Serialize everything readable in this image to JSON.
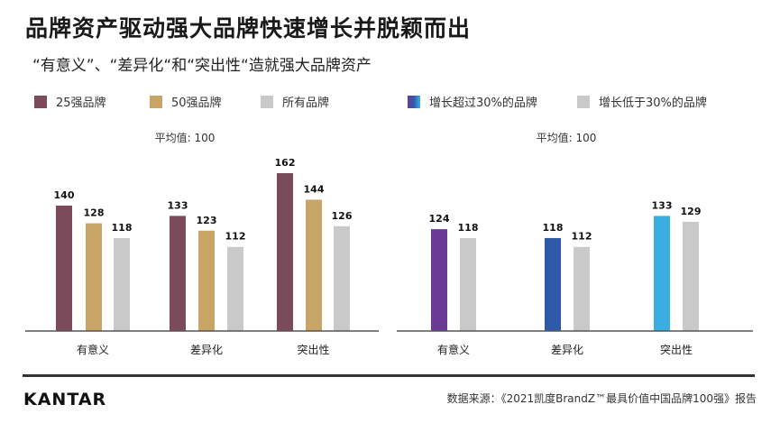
{
  "title": "品牌资产驱动强大品牌快速增长并脱颖而出",
  "subtitle": "“有意义”、“差异化“和“突出性“造就强大品牌资产",
  "footer": {
    "logo": "KANTAR",
    "source": "数据来源：《2021凯度BrandZ™最具价值中国品牌100强》报告"
  },
  "chart_data": [
    {
      "type": "bar",
      "annotation": "平均值: 100",
      "categories": [
        "有意义",
        "差异化",
        "突出性"
      ],
      "series": [
        {
          "name": "25强品牌",
          "values": [
            140,
            133,
            162
          ],
          "color": "#7b4a5b"
        },
        {
          "name": "50强品牌",
          "values": [
            128,
            123,
            144
          ],
          "color": "#c9a467"
        },
        {
          "name": "所有品牌",
          "values": [
            118,
            112,
            126
          ],
          "color": "#c9c9c9"
        }
      ],
      "legend": "top-left",
      "grid": false
    },
    {
      "type": "bar",
      "annotation": "平均值: 100",
      "categories": [
        "有意义",
        "差异化",
        "突出性"
      ],
      "series": [
        {
          "name": "增长超过30%的品牌",
          "values": [
            124,
            118,
            133
          ],
          "colors": [
            "#6a3b95",
            "#2f5aa8",
            "#3aaee3"
          ]
        },
        {
          "name": "增长低于30%的品牌",
          "values": [
            118,
            112,
            129
          ],
          "color": "#c9c9c9"
        }
      ],
      "legend": "top-left",
      "grid": false
    }
  ]
}
